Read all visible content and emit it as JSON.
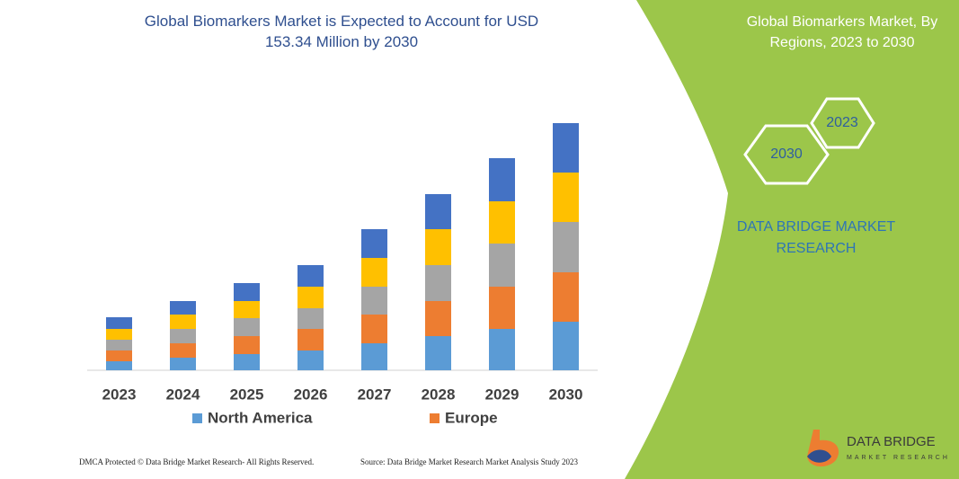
{
  "chart_data": {
    "type": "stacked_bar",
    "title": "Global Biomarkers Market is Expected to Account for USD 153.34 Million by 2030",
    "categories": [
      "2023",
      "2024",
      "2025",
      "2026",
      "2027",
      "2028",
      "2029",
      "2030"
    ],
    "series": [
      {
        "name": "North America",
        "color": "#5b9bd5",
        "values": [
          10,
          14,
          18,
          22,
          30,
          38,
          46,
          54
        ]
      },
      {
        "name": "Europe",
        "color": "#ed7d31",
        "values": [
          12,
          16,
          20,
          24,
          32,
          39,
          47,
          55
        ]
      },
      {
        "color": "#a5a5a5",
        "values": [
          12,
          16,
          20,
          23,
          31,
          40,
          48,
          56
        ]
      },
      {
        "color": "#ffc000",
        "values": [
          12,
          16,
          19,
          24,
          32,
          40,
          47,
          55
        ]
      },
      {
        "color": "#4472c4",
        "values": [
          13,
          15,
          20,
          24,
          32,
          39,
          48,
          55
        ]
      }
    ],
    "ylim": [
      0,
      275
    ],
    "grid": false,
    "legend": "bottom"
  },
  "panel": {
    "title": "Global Biomarkers Market, By Regions, 2023 to 2030",
    "hex_start": "2023",
    "hex_end": "2030",
    "brand": "DATA BRIDGE MARKET RESEARCH"
  },
  "footer": {
    "copyright": "DMCA Protected © Data Bridge Market Research-  All Rights Reserved.",
    "source": "Source: Data Bridge Market Research  Market Analysis Study 2023"
  },
  "logo": {
    "name": "DATA BRIDGE",
    "tagline": "MARKET RESEARCH"
  }
}
